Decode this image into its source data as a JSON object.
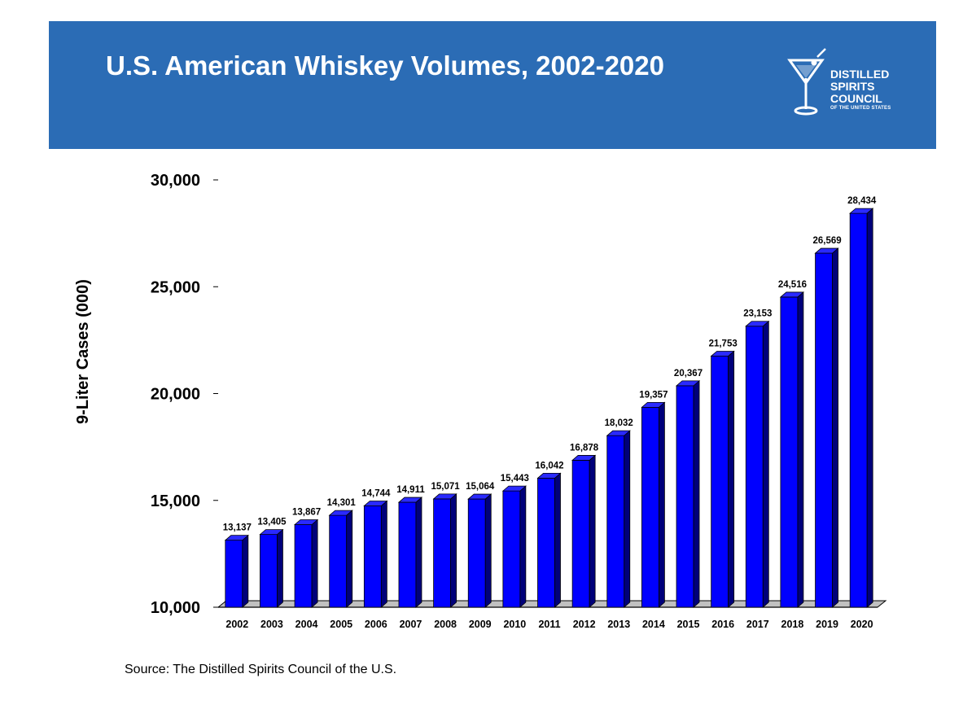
{
  "header": {
    "title": "U.S. American Whiskey Volumes, 2002-2020",
    "logo": {
      "line1": "DISTILLED",
      "line2": "SPIRITS",
      "line3": "COUNCIL",
      "line4": "OF THE UNITED STATES",
      "icon": "martini-glass-icon"
    },
    "banner_color": "#2b6cb5"
  },
  "source": "Source:  The Distilled Spirits Council of the U.S.",
  "chart_data": {
    "type": "bar",
    "title": "",
    "xlabel": "",
    "ylabel": "9-Liter Cases (000)",
    "ylim": [
      10000,
      30000
    ],
    "yticks": [
      "10,000",
      "15,000",
      "20,000",
      "25,000",
      "30,000"
    ],
    "categories": [
      "2002",
      "2003",
      "2004",
      "2005",
      "2006",
      "2007",
      "2008",
      "2009",
      "2010",
      "2011",
      "2012",
      "2013",
      "2014",
      "2015",
      "2016",
      "2017",
      "2018",
      "2019",
      "2020"
    ],
    "values": [
      13137,
      13405,
      13867,
      14301,
      14744,
      14911,
      15071,
      15064,
      15443,
      16042,
      16878,
      18032,
      19357,
      20367,
      21753,
      23153,
      24516,
      26569,
      28434
    ],
    "data_labels": [
      "13,137",
      "13,405",
      "13,867",
      "14,301",
      "14,744",
      "14,911",
      "15,071",
      "15,064",
      "15,443",
      "16,042",
      "16,878",
      "18,032",
      "19,357",
      "20,367",
      "21,753",
      "23,153",
      "24,516",
      "26,569",
      "28,434"
    ],
    "bar_color": "#0000ff",
    "bar_side_color": "#00007a",
    "bar_top_color": "#2a2aff",
    "grid": false,
    "style": "3d-column"
  }
}
